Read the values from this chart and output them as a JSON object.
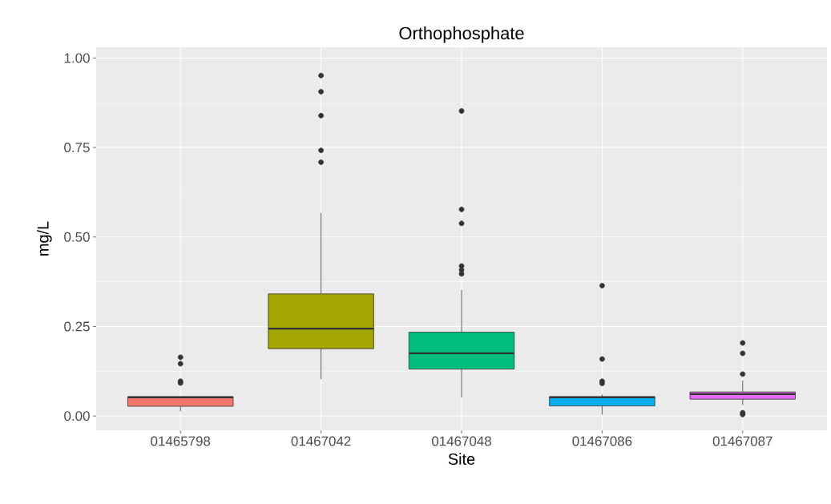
{
  "chart_data": {
    "type": "box",
    "title": "Orthophosphate",
    "xlabel": "Site",
    "ylabel": "mg/L",
    "categories": [
      "01465798",
      "01467042",
      "01467048",
      "01467086",
      "01467087"
    ],
    "colors": [
      "#f8766d",
      "#a3a500",
      "#00bf7d",
      "#00b0f6",
      "#e76bf3"
    ],
    "boxes": [
      {
        "low": 0.013,
        "q1": 0.027,
        "median": 0.052,
        "q3": 0.054,
        "high": 0.054,
        "outliers": [
          0.164,
          0.146,
          0.097,
          0.092
        ]
      },
      {
        "low": 0.103,
        "q1": 0.188,
        "median": 0.244,
        "q3": 0.341,
        "high": 0.567,
        "outliers": [
          0.951,
          0.906,
          0.839,
          0.742,
          0.709
        ]
      },
      {
        "low": 0.052,
        "q1": 0.131,
        "median": 0.175,
        "q3": 0.234,
        "high": 0.352,
        "outliers": [
          0.852,
          0.577,
          0.538,
          0.419,
          0.408,
          0.397
        ]
      },
      {
        "low": 0.004,
        "q1": 0.028,
        "median": 0.052,
        "q3": 0.054,
        "high": 0.06,
        "outliers": [
          0.364,
          0.159,
          0.097,
          0.091
        ]
      },
      {
        "low": 0.03,
        "q1": 0.047,
        "median": 0.061,
        "q3": 0.067,
        "high": 0.099,
        "outliers": [
          0.204,
          0.175,
          0.117,
          0.009,
          0.004
        ]
      }
    ],
    "ylim": [
      -0.04,
      1.03
    ],
    "yticks": [
      {
        "value": 0,
        "label": "0.00"
      },
      {
        "value": 0.25,
        "label": "0.25"
      },
      {
        "value": 0.5,
        "label": "0.50"
      },
      {
        "value": 0.75,
        "label": "0.75"
      },
      {
        "value": 1,
        "label": "1.00"
      }
    ],
    "grid": true
  }
}
